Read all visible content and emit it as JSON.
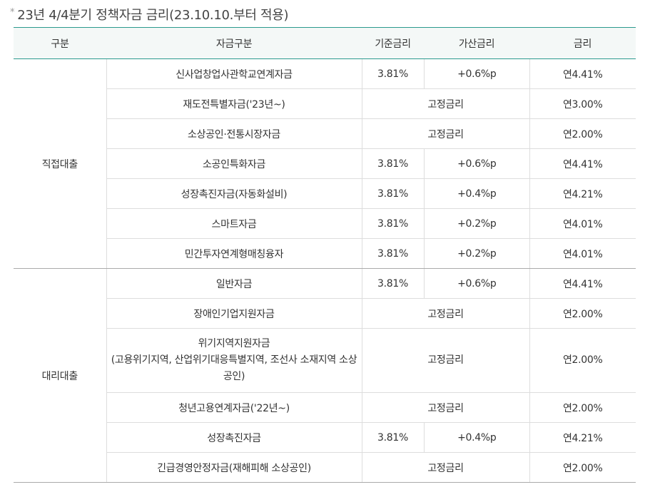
{
  "title": {
    "bullet": "*",
    "text": "23년 4/4분기 정책자금 금리(23.10.10.부터 적용)"
  },
  "table": {
    "headers": [
      "구분",
      "자금구분",
      "기준금리",
      "가산금리",
      "금리"
    ],
    "groups": [
      {
        "name": "직접대출",
        "rows": [
          {
            "fund": "신사업창업사관학교연계자금",
            "base": "3.81%",
            "extra": "+0.6%p",
            "fixed": "",
            "rate": "연4.41%"
          },
          {
            "fund": "재도전특별자금('23년~)",
            "base": "",
            "extra": "",
            "fixed": "고정금리",
            "rate": "연3.00%"
          },
          {
            "fund": "소상공인·전통시장자금",
            "base": "",
            "extra": "",
            "fixed": "고정금리",
            "rate": "연2.00%"
          },
          {
            "fund": "소공인특화자금",
            "base": "3.81%",
            "extra": "+0.6%p",
            "fixed": "",
            "rate": "연4.41%"
          },
          {
            "fund": "성장촉진자금(자동화설비)",
            "base": "3.81%",
            "extra": "+0.4%p",
            "fixed": "",
            "rate": "연4.21%"
          },
          {
            "fund": "스마트자금",
            "base": "3.81%",
            "extra": "+0.2%p",
            "fixed": "",
            "rate": "연4.01%"
          },
          {
            "fund": "민간투자연계형매칭융자",
            "base": "3.81%",
            "extra": "+0.2%p",
            "fixed": "",
            "rate": "연4.01%"
          }
        ]
      },
      {
        "name": "대리대출",
        "rows": [
          {
            "fund": "일반자금",
            "base": "3.81%",
            "extra": "+0.6%p",
            "fixed": "",
            "rate": "연4.41%"
          },
          {
            "fund": "장애인기업지원자금",
            "base": "",
            "extra": "",
            "fixed": "고정금리",
            "rate": "연2.00%"
          },
          {
            "fund_line1": "위기지역지원자금",
            "fund_line2": "(고용위기지역, 산업위기대응특별지역, 조선사 소재지역 소상공인)",
            "base": "",
            "extra": "",
            "fixed": "고정금리",
            "rate": "연2.00%"
          },
          {
            "fund": "청년고용연계자금('22년~)",
            "base": "",
            "extra": "",
            "fixed": "고정금리",
            "rate": "연2.00%"
          },
          {
            "fund": "성장촉진자금",
            "base": "3.81%",
            "extra": "+0.4%p",
            "fixed": "",
            "rate": "연4.21%"
          },
          {
            "fund": "긴급경영안정자금(재해피해 소상공인)",
            "base": "",
            "extra": "",
            "fixed": "고정금리",
            "rate": "연2.00%"
          }
        ]
      }
    ]
  }
}
